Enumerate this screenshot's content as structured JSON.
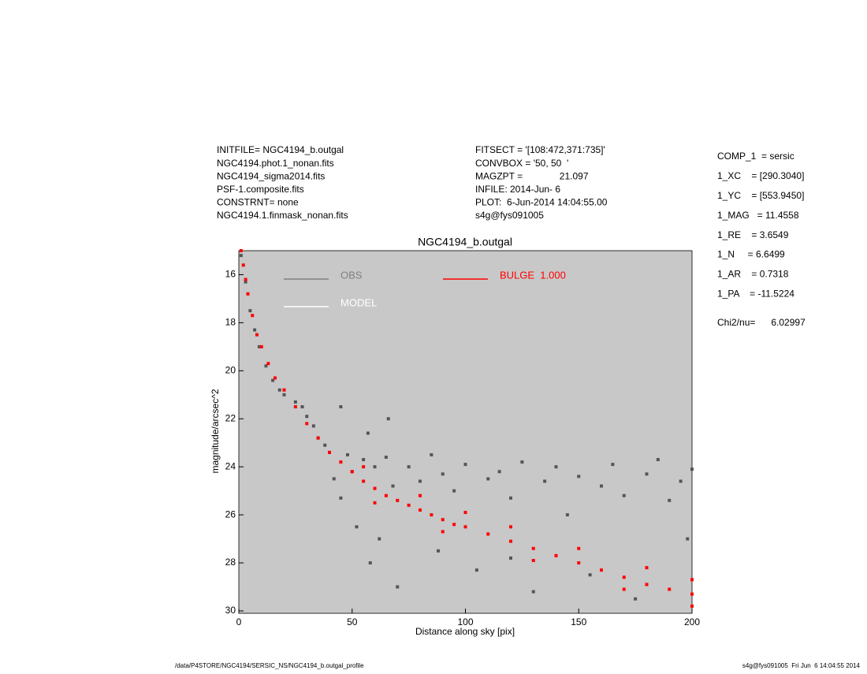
{
  "chart_data": {
    "type": "scatter",
    "title": "NGC4194_b.outgal",
    "x_label": "Distance along sky [pix]",
    "y_label": "magnitude/arcsec^2",
    "xlim": [
      0,
      200
    ],
    "ylim": [
      30.1,
      15
    ],
    "xticks": [
      0,
      50,
      100,
      150,
      200
    ],
    "yticks": [
      16,
      18,
      20,
      22,
      24,
      26,
      28,
      30
    ],
    "background": "#c8c8c8",
    "series": [
      {
        "name": "OBS",
        "color": "#555555",
        "x": [
          1,
          3,
          5,
          7,
          9,
          12,
          15,
          18,
          20,
          25,
          28,
          30,
          33,
          35,
          38,
          40,
          42,
          45,
          48,
          50,
          52,
          55,
          58,
          60,
          62,
          65,
          68,
          70,
          75,
          80,
          85,
          88,
          90,
          95,
          100,
          105,
          110,
          115,
          120,
          125,
          130,
          135,
          140,
          145,
          150,
          155,
          160,
          165,
          170,
          175,
          180,
          185,
          190,
          195,
          200,
          57,
          66,
          198,
          120,
          45
        ],
        "values": [
          15.2,
          16.3,
          17.5,
          18.3,
          19.0,
          19.8,
          20.4,
          20.8,
          21.0,
          21.3,
          21.5,
          21.9,
          22.3,
          22.8,
          23.1,
          23.4,
          24.5,
          25.3,
          23.5,
          24.2,
          26.5,
          23.7,
          28.0,
          24.0,
          27.0,
          23.6,
          24.8,
          29.0,
          24.0,
          24.6,
          23.5,
          27.5,
          24.3,
          25.0,
          23.9,
          28.3,
          24.5,
          24.2,
          25.3,
          23.8,
          29.2,
          24.6,
          24.0,
          26.0,
          24.4,
          28.5,
          24.8,
          23.9,
          25.2,
          29.5,
          24.3,
          23.7,
          25.4,
          24.6,
          24.1,
          22.6,
          22.0,
          27.0,
          27.8,
          21.5
        ]
      },
      {
        "name": "BULGE  1.000",
        "color": "#ff0000",
        "x": [
          1,
          2,
          3,
          4,
          6,
          8,
          10,
          13,
          16,
          20,
          25,
          30,
          35,
          40,
          45,
          50,
          55,
          60,
          65,
          70,
          75,
          80,
          85,
          90,
          95,
          100,
          110,
          120,
          130,
          140,
          150,
          160,
          170,
          180,
          190,
          200,
          55,
          80,
          100,
          120,
          150,
          180,
          200,
          60,
          90,
          130,
          170,
          200
        ],
        "values": [
          15.0,
          15.6,
          16.2,
          16.8,
          17.7,
          18.5,
          19.0,
          19.7,
          20.3,
          20.8,
          21.5,
          22.2,
          22.8,
          23.4,
          23.8,
          24.2,
          24.6,
          24.9,
          25.2,
          25.4,
          25.6,
          25.8,
          26.0,
          26.2,
          26.4,
          26.5,
          26.8,
          27.1,
          27.4,
          27.7,
          28.0,
          28.3,
          28.6,
          28.9,
          29.1,
          29.3,
          24.0,
          25.2,
          25.9,
          26.5,
          27.4,
          28.2,
          28.7,
          25.5,
          26.7,
          27.9,
          29.1,
          29.8
        ]
      },
      {
        "name": "MODEL",
        "color": "#ffffff",
        "x": [],
        "values": []
      }
    ]
  },
  "info_left": [
    "INITFILE= NGC4194_b.outgal",
    "NGC4194.phot.1_nonan.fits",
    "NGC4194_sigma2014.fits",
    "PSF-1.composite.fits",
    "CONSTRNT= none",
    "NGC4194.1.finmask_nonan.fits"
  ],
  "info_mid": [
    "FITSECT = '[108:472,371:735]'",
    "CONVBOX = '50, 50  '",
    "MAGZPT =              21.097",
    "INFILE: 2014-Jun- 6",
    "PLOT:  6-Jun-2014 14:04:55.00",
    "s4g@fys091005"
  ],
  "params": [
    "COMP_1  = sersic",
    "1_XC    = [290.3040]",
    "1_YC    = [553.9450]",
    "1_MAG   = 11.4558",
    "1_RE    = 3.6549",
    "1_N     = 6.6499",
    "1_AR    = 0.7318",
    "1_PA    = -11.5224"
  ],
  "chi2": "Chi2/nu=      6.02997",
  "footer_left": "/data/P4STORE/NGC4194/SERSIC_NS/NGC4194_b.outgal_profile",
  "footer_right": "s4g@fys091005  Fri Jun  6 14:04:55 2014"
}
